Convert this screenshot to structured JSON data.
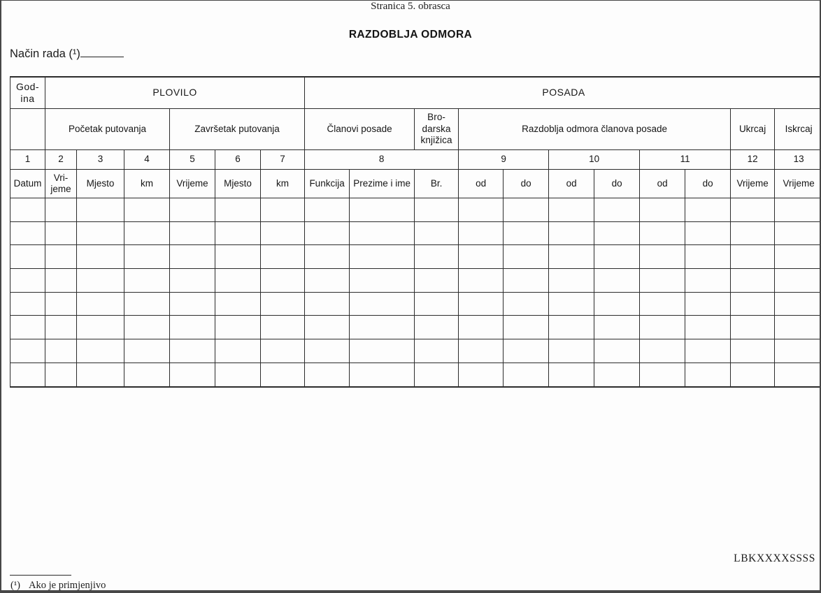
{
  "page": {
    "header_note": "Stranica 5. obrasca",
    "title": "RAZDOBLJA ODMORA",
    "mode_label": "Način rada (¹)",
    "code": "LBKXXXXSSSS",
    "footnote_marker": "(¹)",
    "footnote_text": "Ako je primjenjivo"
  },
  "table": {
    "group_row": {
      "year": "God-\nina",
      "vessel": "PLOVILO",
      "crew": "POSADA"
    },
    "section_row": {
      "trip_start": "Početak putovanja",
      "trip_end": "Završetak putovanja",
      "crew_members": "Članovi posade",
      "boatmasters_book": "Bro-\ndarska\nknjižica",
      "rest_periods": "Razdoblja odmora članova posade",
      "embark": "Ukrcaj",
      "disembark": "Iskrcaj"
    },
    "number_row": [
      "1",
      "2",
      "3",
      "4",
      "5",
      "6",
      "7",
      "8",
      "9",
      "10",
      "11",
      "12",
      "13"
    ],
    "label_row": [
      "Datum",
      "Vri-\njeme",
      "Mjesto",
      "km",
      "Vrijeme",
      "Mjesto",
      "km",
      "Funkcija",
      "Prezime i ime",
      "Br.",
      "od",
      "do",
      "od",
      "do",
      "od",
      "do",
      "Vrijeme",
      "Vrijeme"
    ],
    "data_row_count": 8,
    "column_count": 18
  }
}
